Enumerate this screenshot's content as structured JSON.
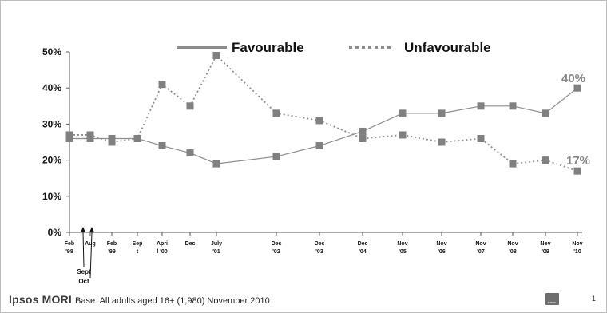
{
  "chart_data": {
    "type": "line",
    "categories": [
      "Feb '98",
      "Aug",
      "Feb '99",
      "Sep t",
      "Apri l '00",
      "Dec",
      "July '01",
      "Dec '02",
      "Dec '03",
      "Dec '04",
      "Nov '05",
      "Nov '06",
      "Nov '07",
      "Nov '08",
      "Nov '09",
      "Nov '10"
    ],
    "category_lines": [
      [
        "Feb",
        "'98"
      ],
      [
        "Aug",
        ""
      ],
      [
        "Feb",
        "'99"
      ],
      [
        "Sep",
        "t"
      ],
      [
        "Apri",
        "l '00"
      ],
      [
        "Dec",
        ""
      ],
      [
        "July",
        "'01"
      ],
      [
        "Dec",
        "'02"
      ],
      [
        "Dec",
        "'03"
      ],
      [
        "Dec",
        "'04"
      ],
      [
        "Nov",
        "'05"
      ],
      [
        "Nov",
        "'06"
      ],
      [
        "Nov",
        "'07"
      ],
      [
        "Nov",
        "'08"
      ],
      [
        "Nov",
        "'09"
      ],
      [
        "Nov",
        "'10"
      ]
    ],
    "series": [
      {
        "name": "Favourable",
        "style": "solid",
        "color": "#8c8c8c",
        "values": [
          26,
          26,
          26,
          26,
          24,
          22,
          19,
          21,
          24,
          28,
          33,
          33,
          35,
          35,
          33,
          40
        ]
      },
      {
        "name": "Unfavourable",
        "style": "dotted",
        "color": "#8c8c8c",
        "values": [
          27,
          27,
          25,
          26,
          41,
          35,
          49,
          33,
          31,
          26,
          27,
          25,
          26,
          19,
          20,
          17
        ]
      }
    ],
    "ylim": [
      0,
      50
    ],
    "yticks": [
      "0%",
      "10%",
      "20%",
      "30%",
      "40%",
      "50%"
    ],
    "end_labels": [
      "40%",
      "17%"
    ],
    "annotations": [
      "Sept",
      "Oct"
    ],
    "legend_position": "top",
    "grid": false,
    "marker_color": "#808080",
    "axis_color": "#555555"
  },
  "footer": {
    "brand": "Ipsos MORI",
    "base": "Base: All adults aged 16+ (1,980) November 2010",
    "logo_text": "Ipsos",
    "page_number": "1"
  }
}
